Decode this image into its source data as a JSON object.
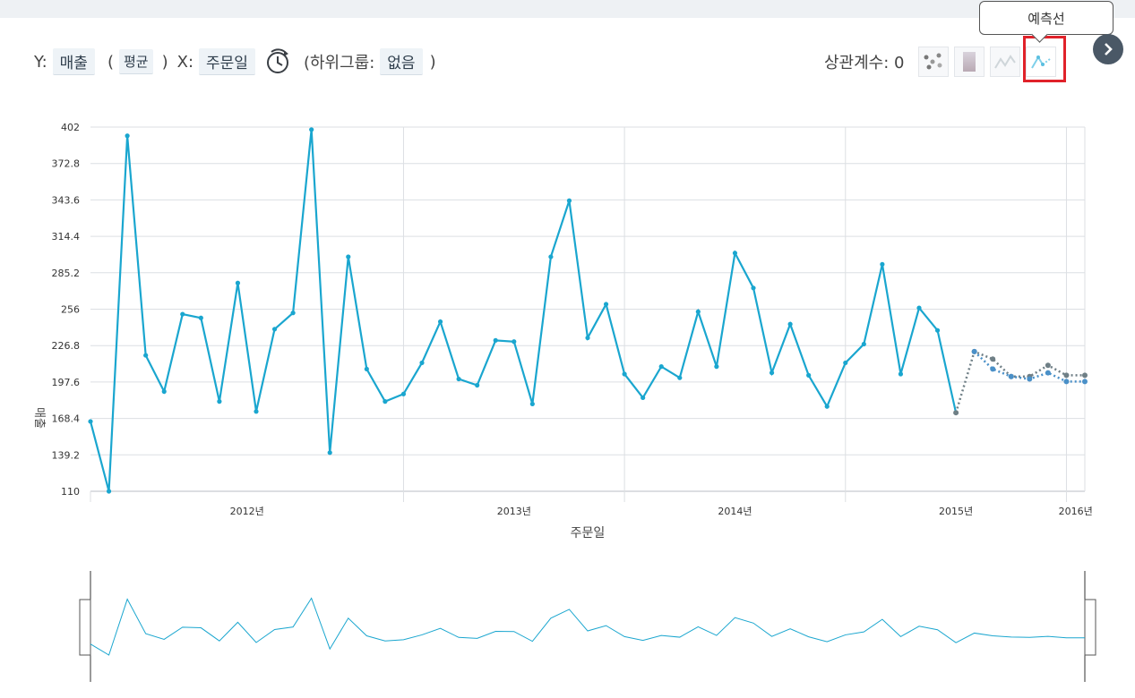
{
  "toolbar": {
    "y_label": "Y:",
    "y_field": "매출",
    "paren_open": "(",
    "y_agg": "평균",
    "paren_close": ")",
    "x_label": "X:",
    "x_field": "주문일",
    "subgroup_open": "(하위그룹:",
    "subgroup_value": "없음",
    "subgroup_close": ")",
    "correlation": "상관계수: 0",
    "tooltip": "예측선",
    "icons": [
      "clock-refresh-icon",
      "scatter-icon",
      "gradient-icon",
      "line-icon",
      "forecast-line-icon",
      "chevron-right-icon"
    ]
  },
  "colors": {
    "series": "#1aa6cf",
    "forecast_a": "#6f7f86",
    "forecast_b": "#4a90c8",
    "grid": "#dcdfe3",
    "highlight": "#e0222a"
  },
  "chart_data": {
    "type": "line",
    "title": "",
    "xlabel": "주문일",
    "ylabel": "매출",
    "ylim": [
      110,
      402
    ],
    "yticks": [
      "402",
      "372.8",
      "343.6",
      "314.4",
      "285.2",
      "256",
      "226.8",
      "197.6",
      "168.4",
      "139.2",
      "110"
    ],
    "year_labels": [
      "2012년",
      "2013년",
      "2014년",
      "2015년",
      "2016년"
    ],
    "grid": true,
    "legend": "none",
    "series": [
      {
        "x": [
          "2011-08",
          "2011-09",
          "2011-10",
          "2011-11",
          "2011-12",
          "2012-01",
          "2012-02",
          "2012-03",
          "2012-04",
          "2012-05",
          "2012-06",
          "2012-07",
          "2012-08",
          "2012-09",
          "2012-10",
          "2012-11",
          "2012-12",
          "2013-01",
          "2013-02",
          "2013-03",
          "2013-04",
          "2013-05",
          "2013-06",
          "2013-07",
          "2013-08",
          "2013-09",
          "2013-10",
          "2013-11",
          "2013-12",
          "2014-01",
          "2014-02",
          "2014-03",
          "2014-04",
          "2014-05",
          "2014-06",
          "2014-07",
          "2014-08",
          "2014-09",
          "2014-10",
          "2014-11",
          "2014-12",
          "2015-01",
          "2015-02",
          "2015-03",
          "2015-04",
          "2015-05",
          "2015-06",
          "2015-07"
        ],
        "values": [
          166,
          110,
          395,
          219,
          190,
          252,
          249,
          182,
          277,
          174,
          240,
          253,
          400,
          141,
          298,
          208,
          182,
          188,
          213,
          246,
          200,
          195,
          231,
          230,
          180,
          298,
          343,
          233,
          260,
          204,
          185,
          210,
          201,
          254,
          210,
          301,
          273,
          205,
          244,
          203,
          178,
          213,
          228,
          292,
          204,
          257,
          239,
          173
        ]
      },
      {
        "type": "forecast",
        "x": [
          "2015-07",
          "2015-08",
          "2015-09",
          "2015-10",
          "2015-11",
          "2015-12",
          "2016-01",
          "2016-02"
        ],
        "values": [
          173,
          222,
          216,
          202,
          202,
          211,
          203,
          203
        ]
      },
      {
        "type": "forecast",
        "x": [
          "2015-08",
          "2015-09",
          "2015-10",
          "2015-11",
          "2015-12",
          "2016-01",
          "2016-02"
        ],
        "values": [
          222,
          208,
          202,
          200,
          205,
          198,
          198
        ]
      }
    ]
  }
}
